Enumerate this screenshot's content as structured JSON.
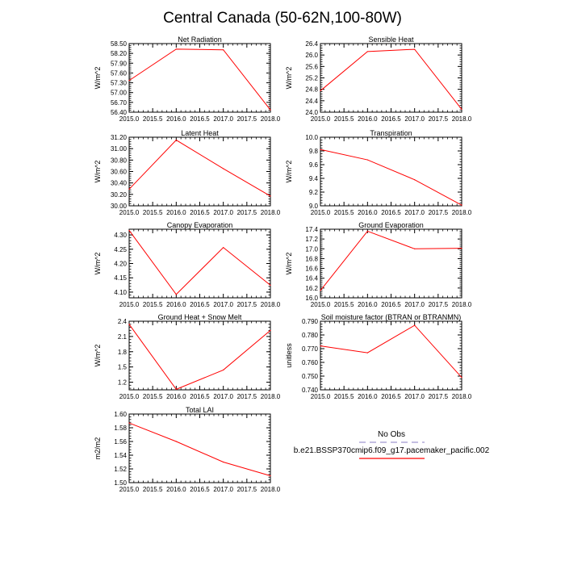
{
  "title": "Central Canada (50-62N,100-80W)",
  "legend": {
    "obs_label": "No Obs",
    "obs_color": "#b0a8d8",
    "model_label": "b.e21.BSSP370cmip6.f09_g17.pacemaker_pacific.002",
    "model_color": "#ff0000"
  },
  "chart_data": [
    {
      "type": "line",
      "title": "Net Radiation",
      "ylabel": "W/m^2",
      "x": [
        2015.0,
        2016.0,
        2017.0,
        2018.0
      ],
      "series": [
        {
          "name": "b.e21.BSSP370cmip6.f09_g17.pacemaker_pacific.002",
          "values": [
            57.37,
            58.33,
            58.31,
            56.47
          ]
        }
      ],
      "xlim": [
        2015.0,
        2018.0
      ],
      "ylim": [
        56.4,
        58.5
      ],
      "xticks": [
        "2015.0",
        "2015.5",
        "2016.0",
        "2016.5",
        "2017.0",
        "2017.5",
        "2018.0"
      ],
      "yticks": [
        "56.40",
        "56.70",
        "57.00",
        "57.30",
        "57.60",
        "57.90",
        "58.20",
        "58.50"
      ]
    },
    {
      "type": "line",
      "title": "Sensible Heat",
      "ylabel": "W/m^2",
      "x": [
        2015.0,
        2016.0,
        2017.0,
        2018.0
      ],
      "series": [
        {
          "name": "b.e21.BSSP370cmip6.f09_g17.pacemaker_pacific.002",
          "values": [
            24.75,
            26.12,
            26.2,
            24.1
          ]
        }
      ],
      "xlim": [
        2015.0,
        2018.0
      ],
      "ylim": [
        24.0,
        26.4
      ],
      "xticks": [
        "2015.0",
        "2015.5",
        "2016.0",
        "2016.5",
        "2017.0",
        "2017.5",
        "2018.0"
      ],
      "yticks": [
        "24.0",
        "24.4",
        "24.8",
        "25.2",
        "25.6",
        "26.0",
        "26.4"
      ]
    },
    {
      "type": "line",
      "title": "Latent Heat",
      "ylabel": "W/m^2",
      "x": [
        2015.0,
        2016.0,
        2017.0,
        2018.0
      ],
      "series": [
        {
          "name": "b.e21.BSSP370cmip6.f09_g17.pacemaker_pacific.002",
          "values": [
            30.29,
            31.15,
            30.65,
            30.17
          ]
        }
      ],
      "xlim": [
        2015.0,
        2018.0
      ],
      "ylim": [
        30.0,
        31.2
      ],
      "xticks": [
        "2015.0",
        "2015.5",
        "2016.0",
        "2016.5",
        "2017.0",
        "2017.5",
        "2018.0"
      ],
      "yticks": [
        "30.00",
        "30.20",
        "30.40",
        "30.60",
        "30.80",
        "31.00",
        "31.20"
      ]
    },
    {
      "type": "line",
      "title": "Transpiration",
      "ylabel": "W/m^2",
      "x": [
        2015.0,
        2016.0,
        2017.0,
        2018.0
      ],
      "series": [
        {
          "name": "b.e21.BSSP370cmip6.f09_g17.pacemaker_pacific.002",
          "values": [
            9.82,
            9.67,
            9.38,
            9.01
          ]
        }
      ],
      "xlim": [
        2015.0,
        2018.0
      ],
      "ylim": [
        9.0,
        10.0
      ],
      "xticks": [
        "2015.0",
        "2015.5",
        "2016.0",
        "2016.5",
        "2017.0",
        "2017.5",
        "2018.0"
      ],
      "yticks": [
        "9.0",
        "9.2",
        "9.4",
        "9.6",
        "9.8",
        "10.0"
      ]
    },
    {
      "type": "line",
      "title": "Canopy Evaporation",
      "ylabel": "W/m^2",
      "x": [
        2015.0,
        2016.0,
        2017.0,
        2018.0
      ],
      "series": [
        {
          "name": "b.e21.BSSP370cmip6.f09_g17.pacemaker_pacific.002",
          "values": [
            4.316,
            4.092,
            4.256,
            4.124
          ]
        }
      ],
      "xlim": [
        2015.0,
        2018.0
      ],
      "ylim": [
        4.08,
        4.32
      ],
      "xticks": [
        "2015.0",
        "2015.5",
        "2016.0",
        "2016.5",
        "2017.0",
        "2017.5",
        "2018.0"
      ],
      "yticks": [
        "4.10",
        "4.15",
        "4.20",
        "4.25",
        "4.30"
      ]
    },
    {
      "type": "line",
      "title": "Ground Evaporation",
      "ylabel": "W/m^2",
      "x": [
        2015.0,
        2016.0,
        2017.0,
        2018.0
      ],
      "series": [
        {
          "name": "b.e21.BSSP370cmip6.f09_g17.pacemaker_pacific.002",
          "values": [
            16.15,
            17.36,
            17.0,
            17.01
          ]
        }
      ],
      "xlim": [
        2015.0,
        2018.0
      ],
      "ylim": [
        16.0,
        17.4
      ],
      "xticks": [
        "2015.0",
        "2015.5",
        "2016.0",
        "2016.5",
        "2017.0",
        "2017.5",
        "2018.0"
      ],
      "yticks": [
        "16.0",
        "16.2",
        "16.4",
        "16.6",
        "16.8",
        "17.0",
        "17.2",
        "17.4"
      ]
    },
    {
      "type": "line",
      "title": "Ground Heat + Snow Melt",
      "ylabel": "W/m^2",
      "x": [
        2015.0,
        2016.0,
        2017.0,
        2018.0
      ],
      "series": [
        {
          "name": "b.e21.BSSP370cmip6.f09_g17.pacemaker_pacific.002",
          "values": [
            2.34,
            1.06,
            1.44,
            2.22
          ]
        }
      ],
      "xlim": [
        2015.0,
        2018.0
      ],
      "ylim": [
        1.05,
        2.4
      ],
      "xticks": [
        "2015.0",
        "2015.5",
        "2016.0",
        "2016.5",
        "2017.0",
        "2017.5",
        "2018.0"
      ],
      "yticks": [
        "1.2",
        "1.5",
        "1.8",
        "2.1",
        "2.4"
      ]
    },
    {
      "type": "line",
      "title": "Soil moisture factor (BTRAN or BTRANMN)",
      "ylabel": "unitless",
      "x": [
        2015.0,
        2016.0,
        2017.0,
        2018.0
      ],
      "series": [
        {
          "name": "b.e21.BSSP370cmip6.f09_g17.pacemaker_pacific.002",
          "values": [
            0.772,
            0.767,
            0.787,
            0.749
          ]
        }
      ],
      "xlim": [
        2015.0,
        2018.0
      ],
      "ylim": [
        0.74,
        0.79
      ],
      "xticks": [
        "2015.0",
        "2015.5",
        "2016.0",
        "2016.5",
        "2017.0",
        "2017.5",
        "2018.0"
      ],
      "yticks": [
        "0.740",
        "0.750",
        "0.760",
        "0.770",
        "0.780",
        "0.790"
      ]
    },
    {
      "type": "line",
      "title": "Total LAI",
      "ylabel": "m2/m2",
      "x": [
        2015.0,
        2016.0,
        2017.0,
        2018.0
      ],
      "series": [
        {
          "name": "b.e21.BSSP370cmip6.f09_g17.pacemaker_pacific.002",
          "values": [
            1.587,
            1.56,
            1.53,
            1.51
          ]
        }
      ],
      "xlim": [
        2015.0,
        2018.0
      ],
      "ylim": [
        1.5,
        1.6
      ],
      "xticks": [
        "2015.0",
        "2015.5",
        "2016.0",
        "2016.5",
        "2017.0",
        "2017.5",
        "2018.0"
      ],
      "yticks": [
        "1.50",
        "1.52",
        "1.54",
        "1.56",
        "1.58",
        "1.60"
      ]
    }
  ]
}
